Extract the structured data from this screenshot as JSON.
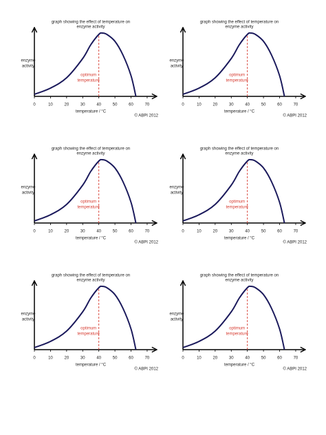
{
  "chart_data": [
    {
      "type": "line",
      "title": [
        "graph showing the effect of temperature on",
        "enzyme activity"
      ],
      "xlabel": "temperature / °C",
      "ylabel": [
        "enzyme",
        "activity"
      ],
      "annotation": [
        "optimum",
        "temperature"
      ],
      "credit": "© ABPI 2012",
      "x": [
        0,
        10,
        20,
        30,
        35,
        40,
        42,
        45,
        50,
        55,
        60,
        63
      ],
      "series": [
        {
          "color": "#1b1a5c",
          "values": [
            3,
            12,
            27,
            55,
            75,
            90,
            92,
            90,
            80,
            60,
            30,
            0
          ]
        }
      ],
      "vline": {
        "x": 40,
        "color": "#d63a2f"
      },
      "xlim": [
        0,
        76
      ],
      "ylim": [
        0,
        100
      ],
      "xticks": [
        0,
        10,
        20,
        30,
        40,
        50,
        60,
        70
      ]
    },
    {
      "type": "line",
      "title": [
        "graph showing the effect of temperature on",
        "enzyme activity"
      ],
      "xlabel": "temperature / °C",
      "ylabel": [
        "enzyme",
        "activity"
      ],
      "annotation": [
        "optimum",
        "temperature"
      ],
      "credit": "© ABPI 2012",
      "x": [
        0,
        10,
        20,
        30,
        35,
        40,
        42,
        45,
        50,
        55,
        60,
        63
      ],
      "series": [
        {
          "color": "#1b1a5c",
          "values": [
            3,
            12,
            27,
            55,
            75,
            90,
            92,
            90,
            80,
            60,
            30,
            0
          ]
        }
      ],
      "vline": {
        "x": 40,
        "color": "#d63a2f"
      },
      "xlim": [
        0,
        76
      ],
      "ylim": [
        0,
        100
      ],
      "xticks": [
        0,
        10,
        20,
        30,
        40,
        50,
        60,
        70
      ]
    },
    {
      "type": "line",
      "title": [
        "graph showing the effect of temperature on",
        "enzyme activity"
      ],
      "xlabel": "temperature / °C",
      "ylabel": [
        "enzyme",
        "activity"
      ],
      "annotation": [
        "optimum",
        "temperature"
      ],
      "credit": "© ABPI 2012",
      "x": [
        0,
        10,
        20,
        30,
        35,
        40,
        42,
        45,
        50,
        55,
        60,
        63
      ],
      "series": [
        {
          "color": "#1b1a5c",
          "values": [
            3,
            12,
            27,
            55,
            75,
            90,
            92,
            90,
            80,
            60,
            30,
            0
          ]
        }
      ],
      "vline": {
        "x": 40,
        "color": "#d63a2f"
      },
      "xlim": [
        0,
        76
      ],
      "ylim": [
        0,
        100
      ],
      "xticks": [
        0,
        10,
        20,
        30,
        40,
        50,
        60,
        70
      ]
    },
    {
      "type": "line",
      "title": [
        "graph showing the effect of temperature on",
        "enzyme activity"
      ],
      "xlabel": "temperature / °C",
      "ylabel": [
        "enzyme",
        "activity"
      ],
      "annotation": [
        "optimum",
        "temperature"
      ],
      "credit": "© ABPI 2012",
      "x": [
        0,
        10,
        20,
        30,
        35,
        40,
        42,
        45,
        50,
        55,
        60,
        63
      ],
      "series": [
        {
          "color": "#1b1a5c",
          "values": [
            3,
            12,
            27,
            55,
            75,
            90,
            92,
            90,
            80,
            60,
            30,
            0
          ]
        }
      ],
      "vline": {
        "x": 40,
        "color": "#d63a2f"
      },
      "xlim": [
        0,
        76
      ],
      "ylim": [
        0,
        100
      ],
      "xticks": [
        0,
        10,
        20,
        30,
        40,
        50,
        60,
        70
      ]
    },
    {
      "type": "line",
      "title": [
        "graph showing the effect of temperature on",
        "enzyme activity"
      ],
      "xlabel": "temperature / °C",
      "ylabel": [
        "enzyme",
        "activity"
      ],
      "annotation": [
        "optimum",
        "temperature"
      ],
      "credit": "© ABPI 2012",
      "x": [
        0,
        10,
        20,
        30,
        35,
        40,
        42,
        45,
        50,
        55,
        60,
        63
      ],
      "series": [
        {
          "color": "#1b1a5c",
          "values": [
            3,
            12,
            27,
            55,
            75,
            90,
            92,
            90,
            80,
            60,
            30,
            0
          ]
        }
      ],
      "vline": {
        "x": 40,
        "color": "#d63a2f"
      },
      "xlim": [
        0,
        76
      ],
      "ylim": [
        0,
        100
      ],
      "xticks": [
        0,
        10,
        20,
        30,
        40,
        50,
        60,
        70
      ]
    },
    {
      "type": "line",
      "title": [
        "graph showing the effect of temperature on",
        "enzyme activity"
      ],
      "xlabel": "temperature / °C",
      "ylabel": [
        "enzyme",
        "activity"
      ],
      "annotation": [
        "optimum",
        "temperature"
      ],
      "credit": "© ABPI 2012",
      "x": [
        0,
        10,
        20,
        30,
        35,
        40,
        42,
        45,
        50,
        55,
        60,
        63
      ],
      "series": [
        {
          "color": "#1b1a5c",
          "values": [
            3,
            12,
            27,
            55,
            75,
            90,
            92,
            90,
            80,
            60,
            30,
            0
          ]
        }
      ],
      "vline": {
        "x": 40,
        "color": "#d63a2f"
      },
      "xlim": [
        0,
        76
      ],
      "ylim": [
        0,
        100
      ],
      "xticks": [
        0,
        10,
        20,
        30,
        40,
        50,
        60,
        70
      ]
    }
  ]
}
